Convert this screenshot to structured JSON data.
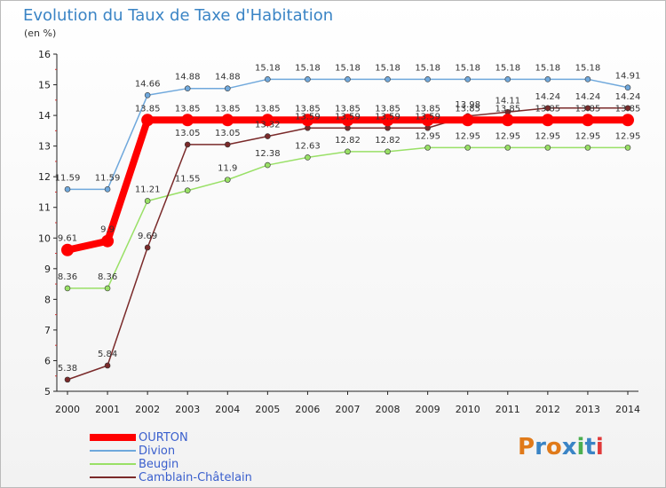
{
  "title": "Evolution du Taux de Taxe d'Habitation",
  "unit": "(en %)",
  "logo": {
    "text": "Proxiti",
    "colors": [
      "#e07a1a",
      "#3a84c5",
      "#e07a1a",
      "#3a84c5",
      "#4caf50",
      "#3a84c5",
      "#e03a3a"
    ]
  },
  "chart_data": {
    "type": "line",
    "title": "Evolution du Taux de Taxe d'Habitation",
    "ylabel": "(en %)",
    "xlabel": "",
    "x": [
      2000,
      2001,
      2002,
      2003,
      2004,
      2005,
      2006,
      2007,
      2008,
      2009,
      2010,
      2011,
      2012,
      2013,
      2014
    ],
    "ylim": [
      5,
      16
    ],
    "yticks": [
      5,
      6,
      7,
      8,
      9,
      10,
      11,
      12,
      13,
      14,
      15,
      16
    ],
    "grid": false,
    "legend": "bottom-left",
    "series": [
      {
        "name": "OURTON",
        "color": "#ff0000",
        "width": 8,
        "marker": 7,
        "values": [
          9.61,
          9.9,
          13.85,
          13.85,
          13.85,
          13.85,
          13.85,
          13.85,
          13.85,
          13.85,
          13.85,
          13.85,
          13.85,
          13.85,
          13.85
        ],
        "labels": [
          "9.61",
          "9.9",
          "13.85",
          "13.85",
          "13.85",
          "13.85",
          "13.85",
          "13.85",
          "13.85",
          "13.85",
          "13.85",
          "13.85",
          "13.85",
          "13.85",
          "13.85"
        ]
      },
      {
        "name": "Divion",
        "color": "#6fa8dc",
        "width": 1.5,
        "marker": 3,
        "values": [
          11.59,
          11.59,
          14.66,
          14.88,
          14.88,
          15.18,
          15.18,
          15.18,
          15.18,
          15.18,
          15.18,
          15.18,
          15.18,
          15.18,
          14.91
        ],
        "labels": [
          "11.59",
          "11.59",
          "14.66",
          "14.88",
          "14.88",
          "15.18",
          "15.18",
          "15.18",
          "15.18",
          "15.18",
          "15.18",
          "15.18",
          "15.18",
          "15.18",
          "14.91"
        ]
      },
      {
        "name": "Beugin",
        "color": "#99e066",
        "width": 1.5,
        "marker": 3,
        "values": [
          8.36,
          8.36,
          11.21,
          11.55,
          11.9,
          12.38,
          12.63,
          12.82,
          12.82,
          12.95,
          12.95,
          12.95,
          12.95,
          12.95,
          12.95
        ],
        "labels": [
          "8.36",
          "8.36",
          "11.21",
          "11.55",
          "11.9",
          "12.38",
          "12.63",
          "12.82",
          "12.82",
          "12.95",
          "12.95",
          "12.95",
          "12.95",
          "12.95",
          "12.95"
        ]
      },
      {
        "name": "Camblain-Châtelain",
        "color": "#7a2a2a",
        "width": 1.5,
        "marker": 3,
        "values": [
          5.38,
          5.84,
          9.69,
          13.05,
          13.05,
          13.32,
          13.59,
          13.59,
          13.59,
          13.59,
          13.98,
          14.11,
          14.24,
          14.24,
          14.24
        ],
        "labels": [
          "5.38",
          "5.84",
          "9.69",
          "13.05",
          "13.05",
          "13.32",
          "13.59",
          "13.59",
          "13.59",
          "13.59",
          "13.98",
          "14.11",
          "14.24",
          "14.24",
          "14.24"
        ]
      }
    ]
  }
}
